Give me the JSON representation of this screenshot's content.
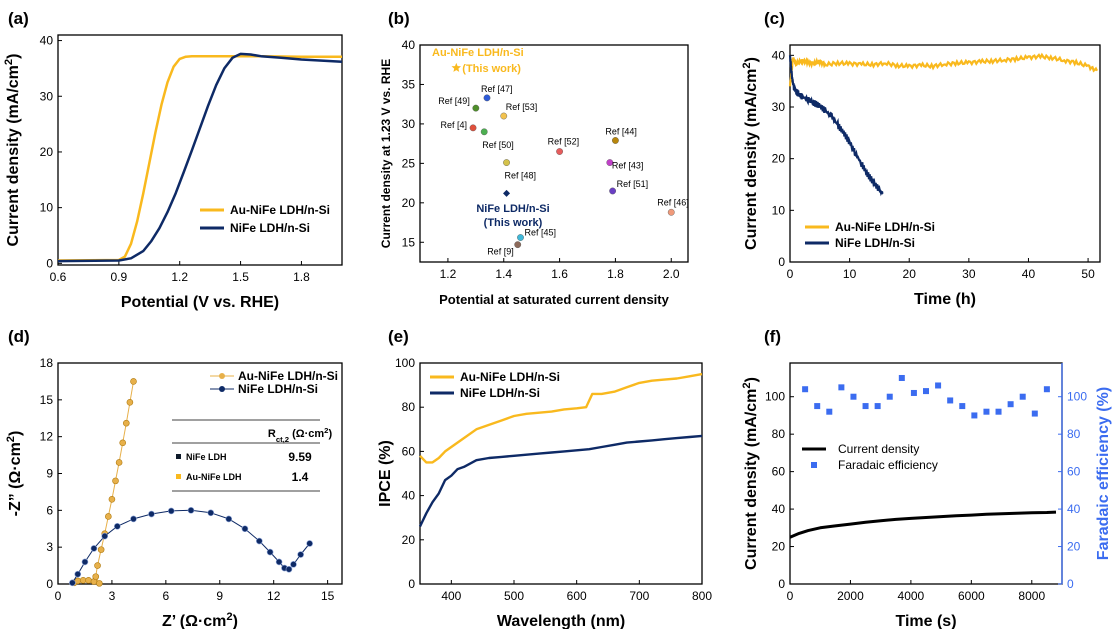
{
  "colors": {
    "gold": "#F9B91E",
    "navy": "#0E2A66",
    "axis": "#000000",
    "blue_marker": "#3B6CF0",
    "panel_e_gold": "#F9B91E"
  },
  "chart_data": [
    {
      "id": "a",
      "panel_label": "(a)",
      "type": "line",
      "xlabel": "Potential (V vs. RHE)",
      "ylabel": "Current density (mA/cm²)",
      "xlim": [
        0.6,
        2.0
      ],
      "ylim": [
        -0.3,
        41
      ],
      "xticks": [
        0.6,
        0.9,
        1.2,
        1.5,
        1.8
      ],
      "yticks": [
        0,
        10,
        20,
        30,
        40
      ],
      "legend": {
        "position": "bottom-right"
      },
      "series": [
        {
          "name": "Au-NiFe LDH/n-Si",
          "color": "#F9B91E",
          "x": [
            0.6,
            0.9,
            0.93,
            0.96,
            0.99,
            1.02,
            1.05,
            1.08,
            1.11,
            1.14,
            1.17,
            1.2,
            1.23,
            1.26,
            1.3,
            1.4,
            1.5,
            1.6,
            1.8,
            2.0
          ],
          "y": [
            0.5,
            0.6,
            1.2,
            3.5,
            7.5,
            12.5,
            18,
            23.5,
            28.5,
            32.5,
            35.3,
            36.7,
            37.1,
            37.2,
            37.2,
            37.2,
            37.2,
            37.2,
            37.1,
            37.1
          ]
        },
        {
          "name": "NiFe LDH/n-Si",
          "color": "#0E2A66",
          "x": [
            0.6,
            0.9,
            0.96,
            1.02,
            1.06,
            1.1,
            1.14,
            1.18,
            1.22,
            1.26,
            1.3,
            1.34,
            1.38,
            1.42,
            1.46,
            1.5,
            1.55,
            1.6,
            1.7,
            1.8,
            1.9,
            2.0
          ],
          "y": [
            0.4,
            0.5,
            0.9,
            2.2,
            4.0,
            6.3,
            9.2,
            12.6,
            16.4,
            20.3,
            24.3,
            28.3,
            32.0,
            35.0,
            36.9,
            37.6,
            37.5,
            37.2,
            36.9,
            36.6,
            36.4,
            36.2
          ]
        }
      ]
    },
    {
      "id": "b",
      "panel_label": "(b)",
      "type": "scatter",
      "xlabel": "Potential at saturated current density",
      "ylabel": "Current density at 1.23 V vs. RHE",
      "xlim": [
        1.1,
        2.06
      ],
      "ylim": [
        12.5,
        40
      ],
      "xticks": [
        "1.2",
        "1.4",
        "1.6",
        "1.8",
        "2.0"
      ],
      "yticks": [
        "15",
        "20",
        "25",
        "30",
        "35",
        "40"
      ],
      "points": [
        {
          "label": "Ref [47]",
          "x": 1.34,
          "y": 33.3,
          "color": "#2E5BD9"
        },
        {
          "label": "Ref [49]",
          "x": 1.3,
          "y": 32.0,
          "color": "#4F8F2A"
        },
        {
          "label": "Ref [53]",
          "x": 1.4,
          "y": 31.0,
          "color": "#F2C24E"
        },
        {
          "label": "Ref [4]",
          "x": 1.29,
          "y": 29.5,
          "color": "#E0503C"
        },
        {
          "label": "Ref [50]",
          "x": 1.33,
          "y": 29.0,
          "color": "#4CAF50"
        },
        {
          "label": "Ref [52]",
          "x": 1.6,
          "y": 26.5,
          "color": "#E65C5C"
        },
        {
          "label": "Ref [44]",
          "x": 1.8,
          "y": 27.9,
          "color": "#B8860B"
        },
        {
          "label": "Ref [48]",
          "x": 1.41,
          "y": 25.1,
          "color": "#D4C24A"
        },
        {
          "label": "Ref [43]",
          "x": 1.78,
          "y": 25.1,
          "color": "#C040C8"
        },
        {
          "label": "Ref [51]",
          "x": 1.79,
          "y": 21.5,
          "color": "#6A3FC4"
        },
        {
          "label": "Ref [46]",
          "x": 2.0,
          "y": 18.8,
          "color": "#F09A7A"
        },
        {
          "label": "Ref [45]",
          "x": 1.46,
          "y": 15.6,
          "color": "#3FB8D8"
        },
        {
          "label": "Ref [9]",
          "x": 1.45,
          "y": 14.7,
          "color": "#8C6A5A"
        }
      ],
      "highlights": [
        {
          "label_lines": [
            "Au-NiFe LDH/n-Si",
            "(This work)"
          ],
          "x": 1.23,
          "y": 37.1,
          "marker": "star",
          "color": "#F9B91E"
        },
        {
          "label_lines": [
            "NiFe LDH/n-Si",
            "(This work)"
          ],
          "x": 1.41,
          "y": 21.2,
          "marker": "diamond",
          "color": "#0E2A66"
        }
      ]
    },
    {
      "id": "c",
      "panel_label": "(c)",
      "type": "line",
      "xlabel": "Time (h)",
      "ylabel": "Current density (mA/cm²)",
      "xlim": [
        0,
        52
      ],
      "ylim": [
        0,
        42
      ],
      "xticks": [
        0,
        10,
        20,
        30,
        40,
        50
      ],
      "yticks": [
        0,
        10,
        20,
        30,
        40
      ],
      "legend": {
        "position": "bottom-right"
      },
      "series": [
        {
          "name": "Au-NiFe LDH/n-Si",
          "color": "#F9B91E",
          "x": [
            0,
            0.5,
            1,
            2,
            3,
            4,
            5,
            6,
            8,
            10,
            12,
            14,
            16,
            18,
            20,
            22,
            24,
            26,
            28,
            30,
            32,
            34,
            36,
            38,
            40,
            42,
            44,
            46,
            48,
            50,
            51.5
          ],
          "y": [
            34,
            39.5,
            38.3,
            39.0,
            38.6,
            38.4,
            38.8,
            38.2,
            38.5,
            38.4,
            38.3,
            38.2,
            38.5,
            38.0,
            37.9,
            38.1,
            37.9,
            38.3,
            38.5,
            38.6,
            38.8,
            38.9,
            39.1,
            39.3,
            39.6,
            39.8,
            39.5,
            39.0,
            38.6,
            37.9,
            37.0
          ]
        },
        {
          "name": "NiFe LDH/n-Si",
          "color": "#0E2A66",
          "x": [
            0,
            0.3,
            0.6,
            1,
            1.5,
            2,
            3,
            4,
            5,
            6,
            7,
            8,
            9,
            10,
            11,
            12,
            13,
            14,
            15,
            15.5
          ],
          "y": [
            40,
            36,
            34,
            33,
            32.5,
            32.0,
            31.5,
            30.8,
            30.2,
            29.2,
            28.2,
            26.5,
            25.0,
            23.2,
            21.0,
            19.0,
            17.0,
            15.4,
            14.0,
            13.2
          ]
        }
      ]
    },
    {
      "id": "d",
      "panel_label": "(d)",
      "type": "scatter",
      "xlabel": "Z’ (Ω·cm²)",
      "ylabel": "-Z” (Ω·cm²)",
      "xlim": [
        0,
        15.8
      ],
      "ylim": [
        0,
        18
      ],
      "xticks": [
        0,
        3,
        6,
        9,
        12,
        15
      ],
      "yticks": [
        0,
        3,
        6,
        9,
        12,
        15,
        18
      ],
      "legend": {
        "position": "top-right"
      },
      "series": [
        {
          "name": "Au-NiFe LDH/n-Si",
          "color": "#E7B04A",
          "x": [
            0.9,
            1.1,
            1.4,
            1.7,
            2.0,
            2.3,
            2.1,
            2.2,
            2.4,
            2.6,
            2.8,
            3.0,
            3.2,
            3.4,
            3.6,
            3.8,
            4.0,
            4.2
          ],
          "y": [
            0.1,
            0.25,
            0.3,
            0.3,
            0.2,
            0.05,
            0.6,
            1.5,
            2.8,
            4.1,
            5.5,
            6.9,
            8.4,
            9.9,
            11.5,
            13.1,
            14.8,
            16.5
          ]
        },
        {
          "name": "NiFe LDH/n-Si",
          "color": "#0E2A66",
          "x": [
            0.8,
            1.1,
            1.5,
            2.0,
            2.6,
            3.3,
            4.2,
            5.2,
            6.3,
            7.4,
            8.5,
            9.5,
            10.4,
            11.2,
            11.8,
            12.3,
            12.6,
            12.85,
            13.1,
            13.5,
            14.0
          ],
          "y": [
            0.1,
            0.8,
            1.8,
            2.9,
            3.9,
            4.7,
            5.3,
            5.7,
            5.95,
            6.0,
            5.8,
            5.3,
            4.5,
            3.5,
            2.6,
            1.8,
            1.3,
            1.2,
            1.6,
            2.4,
            3.3
          ]
        }
      ],
      "inset_table": {
        "header": [
          "",
          "Rct,2 (Ω·cm²)"
        ],
        "rows": [
          {
            "marker_color": "#0E1A2A",
            "label": "NiFe LDH",
            "value": "9.59"
          },
          {
            "marker_color": "#F9B91E",
            "label": "Au-NiFe LDH",
            "value": "1.4"
          }
        ]
      }
    },
    {
      "id": "e",
      "panel_label": "(e)",
      "type": "line",
      "xlabel": "Wavelength (nm)",
      "ylabel": "IPCE (%)",
      "xlim": [
        350,
        800
      ],
      "ylim": [
        0,
        100
      ],
      "xticks": [
        400,
        500,
        600,
        700,
        800
      ],
      "yticks": [
        0,
        20,
        40,
        60,
        80,
        100
      ],
      "legend": {
        "position": "top-left"
      },
      "series": [
        {
          "name": "Au-NiFe LDH/n-Si",
          "color": "#F9B91E",
          "x": [
            350,
            360,
            370,
            380,
            390,
            400,
            420,
            440,
            460,
            480,
            500,
            520,
            540,
            560,
            580,
            600,
            615,
            625,
            640,
            660,
            680,
            700,
            720,
            740,
            760,
            780,
            800
          ],
          "y": [
            58,
            55,
            55,
            57,
            60,
            62,
            66,
            70,
            72,
            74,
            76,
            77,
            77.5,
            78,
            79,
            79.5,
            80,
            86,
            86,
            87,
            89,
            91,
            92,
            92.5,
            93,
            94,
            95
          ]
        },
        {
          "name": "NiFe LDH/n-Si",
          "color": "#0E2A66",
          "x": [
            350,
            360,
            370,
            380,
            390,
            400,
            410,
            420,
            440,
            460,
            480,
            500,
            520,
            540,
            560,
            580,
            600,
            620,
            640,
            660,
            680,
            700,
            720,
            740,
            760,
            780,
            800
          ],
          "y": [
            26,
            32,
            37,
            41,
            47,
            49,
            52,
            53,
            56,
            57,
            57.5,
            58,
            58.5,
            59,
            59.5,
            60,
            60.5,
            61,
            62,
            63,
            64,
            64.5,
            65,
            65.5,
            66,
            66.5,
            67
          ]
        }
      ]
    },
    {
      "id": "f",
      "panel_label": "(f)",
      "type": "line",
      "xlabel": "Time (s)",
      "ylabel": "Current density (mA/cm²)",
      "y2label": "Faradaic efficiency (%)",
      "xlim": [
        0,
        9000
      ],
      "ylim": [
        0,
        118
      ],
      "y2lim": [
        0,
        118
      ],
      "xticks": [
        0,
        2000,
        4000,
        6000,
        8000
      ],
      "yticks": [
        0,
        20,
        40,
        60,
        80,
        100
      ],
      "y2ticks": [
        0,
        20,
        40,
        60,
        80,
        100
      ],
      "legend": {
        "position": "center-left"
      },
      "series": [
        {
          "name": "Current density",
          "color": "#000000",
          "axis": "left",
          "style": "line",
          "x": [
            0,
            300,
            600,
            1000,
            1500,
            2000,
            2500,
            3000,
            3500,
            4000,
            4500,
            5000,
            5500,
            6000,
            6500,
            7000,
            7500,
            8000,
            8500,
            8800
          ],
          "y": [
            25,
            27,
            28.5,
            30,
            31,
            32,
            33,
            33.8,
            34.5,
            35,
            35.5,
            36,
            36.4,
            36.8,
            37.2,
            37.5,
            37.8,
            38,
            38.2,
            38.4
          ]
        },
        {
          "name": "Faradaic efficiency",
          "color": "#3B6CF0",
          "axis": "right",
          "style": "marker",
          "x": [
            500,
            900,
            1300,
            1700,
            2100,
            2500,
            2900,
            3300,
            3700,
            4100,
            4500,
            4900,
            5300,
            5700,
            6100,
            6500,
            6900,
            7300,
            7700,
            8100,
            8500
          ],
          "y": [
            104,
            95,
            92,
            105,
            100,
            95,
            95,
            100,
            110,
            102,
            103,
            106,
            98,
            95,
            90,
            92,
            92,
            96,
            100,
            91,
            104
          ]
        }
      ]
    }
  ]
}
